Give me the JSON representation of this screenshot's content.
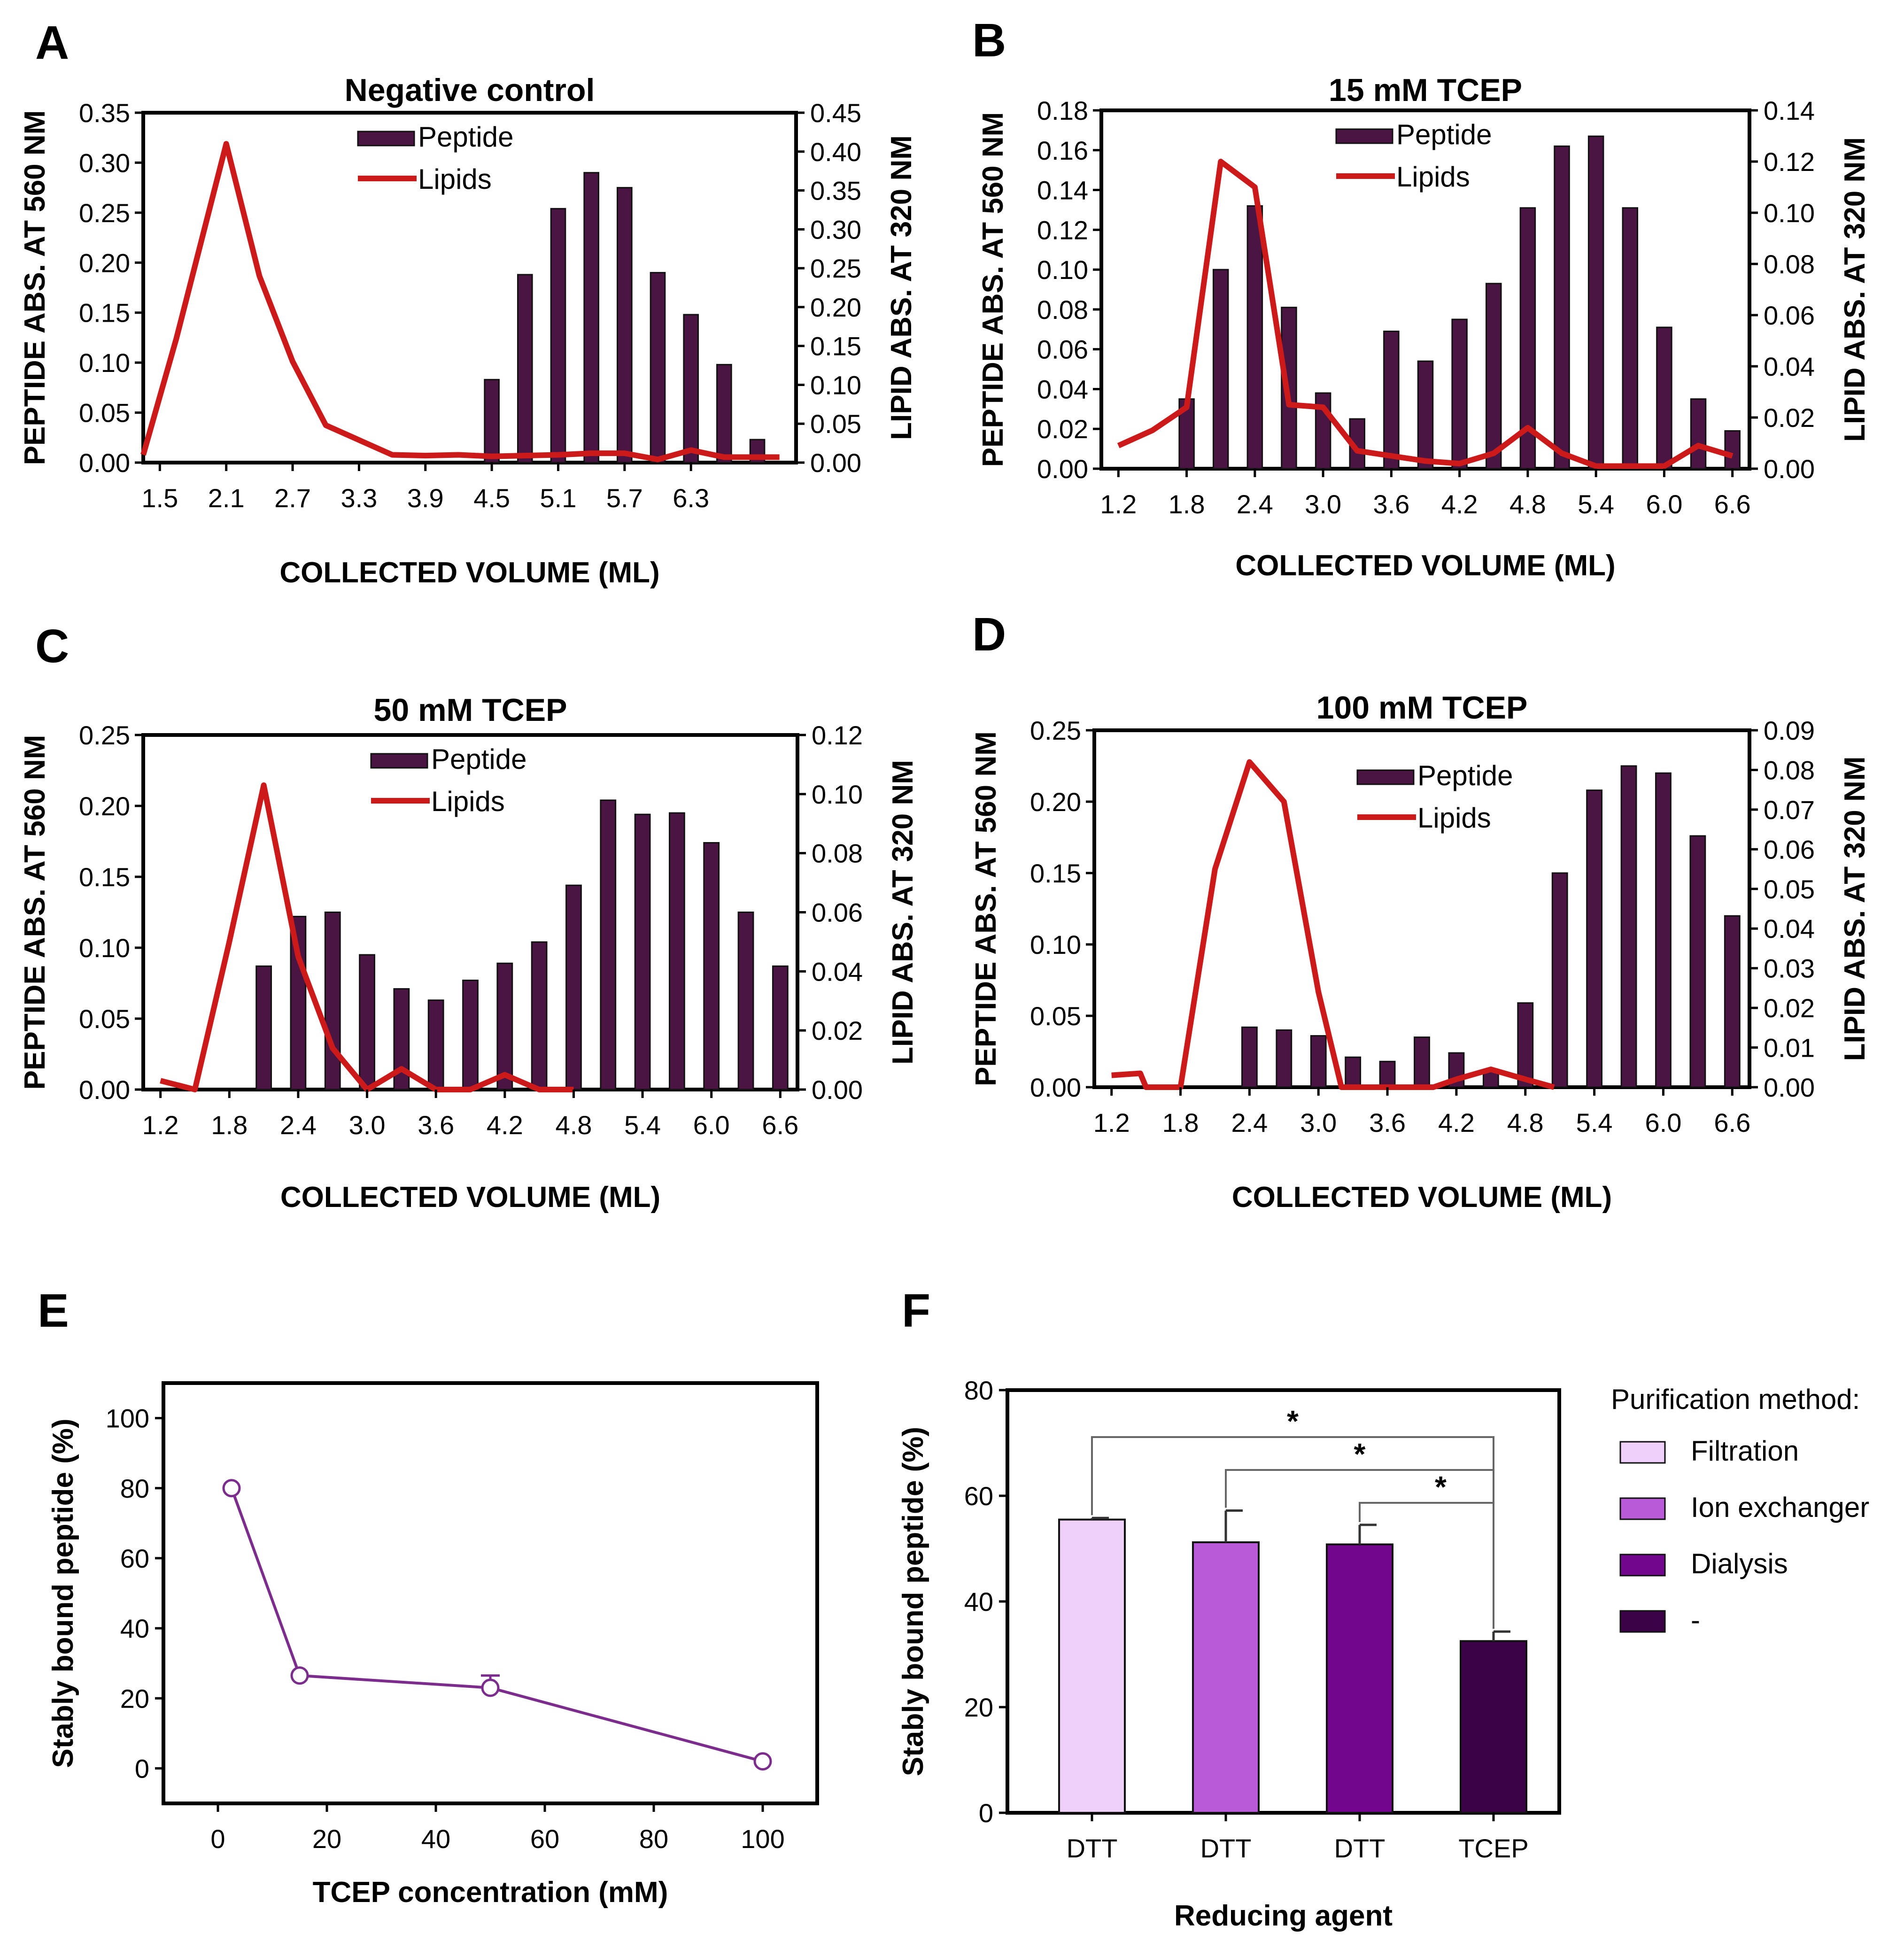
{
  "chart_data": [
    {
      "panel": "A",
      "type": "bar+line",
      "title": "Negative control",
      "xlabel": "COLLECTED VOLUME (ML)",
      "ylabel": "PEPTIDE ABS. AT 560 NM",
      "y2label": "LIPID ABS. AT 320 NM",
      "ylim": [
        0,
        0.35
      ],
      "y2lim": [
        0,
        0.45
      ],
      "xlim": [
        1.35,
        7.25
      ],
      "xticks": [
        "1.5",
        "2.1",
        "2.7",
        "3.3",
        "3.9",
        "4.5",
        "5.1",
        "5.7",
        "6.3"
      ],
      "yticks": [
        "0.00",
        "0.05",
        "0.10",
        "0.15",
        "0.20",
        "0.25",
        "0.30",
        "0.35"
      ],
      "y2ticks": [
        "0.00",
        "0.05",
        "0.10",
        "0.15",
        "0.20",
        "0.25",
        "0.30",
        "0.35",
        "0.40",
        "0.45"
      ],
      "legend": [
        "Peptide",
        "Lipids"
      ],
      "bars": {
        "name": "Peptide",
        "x": [
          4.5,
          4.8,
          5.1,
          5.4,
          5.7,
          6.0,
          6.3,
          6.6,
          6.9
        ],
        "values": [
          0.083,
          0.188,
          0.254,
          0.29,
          0.275,
          0.19,
          0.148,
          0.098,
          0.023
        ]
      },
      "line": {
        "name": "Lipids",
        "x": [
          1.35,
          1.65,
          2.1,
          2.4,
          2.7,
          3.0,
          3.6,
          3.9,
          4.2,
          4.5,
          5.1,
          5.4,
          5.7,
          6.0,
          6.3,
          6.6,
          7.1
        ],
        "values": [
          0.01,
          0.16,
          0.41,
          0.24,
          0.13,
          0.048,
          0.01,
          0.009,
          0.01,
          0.008,
          0.01,
          0.012,
          0.012,
          0.004,
          0.016,
          0.007,
          0.007
        ]
      }
    },
    {
      "panel": "B",
      "type": "bar+line",
      "title": "15 mM TCEP",
      "xlabel": "COLLECTED VOLUME (ML)",
      "ylabel": "PEPTIDE ABS. AT 560 NM",
      "y2label": "LIPID ABS. AT 320 NM",
      "ylim": [
        0,
        0.18
      ],
      "y2lim": [
        0,
        0.14
      ],
      "xlim": [
        1.05,
        6.75
      ],
      "xticks": [
        "1.2",
        "1.8",
        "2.4",
        "3.0",
        "3.6",
        "4.2",
        "4.8",
        "5.4",
        "6.0",
        "6.6"
      ],
      "yticks": [
        "0.00",
        "0.02",
        "0.04",
        "0.06",
        "0.08",
        "0.10",
        "0.12",
        "0.14",
        "0.16",
        "0.18"
      ],
      "y2ticks": [
        "0.00",
        "0.02",
        "0.04",
        "0.06",
        "0.08",
        "0.10",
        "0.12",
        "0.14"
      ],
      "legend": [
        "Peptide",
        "Lipids"
      ],
      "bars": {
        "name": "Peptide",
        "x": [
          1.8,
          2.1,
          2.4,
          2.7,
          3.0,
          3.3,
          3.6,
          3.9,
          4.2,
          4.5,
          4.8,
          5.1,
          5.4,
          5.7,
          6.0,
          6.3,
          6.6
        ],
        "values": [
          0.035,
          0.1,
          0.132,
          0.081,
          0.038,
          0.025,
          0.069,
          0.054,
          0.075,
          0.093,
          0.131,
          0.162,
          0.167,
          0.131,
          0.071,
          0.035,
          0.019
        ]
      },
      "line": {
        "name": "Lipids",
        "x": [
          1.2,
          1.5,
          1.8,
          2.1,
          2.4,
          2.7,
          3.0,
          3.3,
          3.6,
          3.9,
          4.2,
          4.5,
          4.8,
          5.1,
          5.4,
          5.7,
          6.0,
          6.3,
          6.6
        ],
        "values": [
          0.009,
          0.015,
          0.024,
          0.12,
          0.11,
          0.025,
          0.024,
          0.007,
          0.005,
          0.003,
          0.002,
          0.006,
          0.016,
          0.006,
          0.001,
          0.001,
          0.001,
          0.009,
          0.005
        ]
      }
    },
    {
      "panel": "C",
      "type": "bar+line",
      "title": "50 mM TCEP",
      "xlabel": "COLLECTED VOLUME (ML)",
      "ylabel": "PEPTIDE ABS. AT 560 NM",
      "y2label": "LIPID ABS. AT 320 NM",
      "ylim": [
        0,
        0.25
      ],
      "y2lim": [
        0,
        0.12
      ],
      "xlim": [
        1.05,
        6.75
      ],
      "xticks": [
        "1.2",
        "1.8",
        "2.4",
        "3.0",
        "3.6",
        "4.2",
        "4.8",
        "5.4",
        "6.0",
        "6.6"
      ],
      "yticks": [
        "0.00",
        "0.05",
        "0.10",
        "0.15",
        "0.20",
        "0.25"
      ],
      "y2ticks": [
        "0.00",
        "0.02",
        "0.04",
        "0.06",
        "0.08",
        "0.10",
        "0.12"
      ],
      "legend": [
        "Peptide",
        "Lipids"
      ],
      "bars": {
        "name": "Peptide",
        "x": [
          2.1,
          2.4,
          2.7,
          3.0,
          3.3,
          3.6,
          3.9,
          4.2,
          4.5,
          4.8,
          5.1,
          5.4,
          5.7,
          6.0,
          6.3,
          6.6
        ],
        "values": [
          0.087,
          0.122,
          0.125,
          0.095,
          0.071,
          0.063,
          0.077,
          0.089,
          0.104,
          0.144,
          0.204,
          0.194,
          0.195,
          0.174,
          0.125,
          0.087
        ]
      },
      "line": {
        "name": "Lipids",
        "x": [
          1.2,
          1.5,
          1.8,
          2.1,
          2.4,
          2.7,
          3.0,
          3.3,
          3.6,
          3.9,
          4.2,
          4.5,
          4.8
        ],
        "values": [
          0.003,
          0.0,
          0.05,
          0.103,
          0.045,
          0.014,
          0.0,
          0.007,
          0.0,
          0.0,
          0.005,
          0.0,
          0.0
        ]
      }
    },
    {
      "panel": "D",
      "type": "bar+line",
      "title": "100 mM TCEP",
      "xlabel": "COLLECTED VOLUME (ML)",
      "ylabel": "PEPTIDE ABS. AT 560 NM",
      "y2label": "LIPID ABS. AT 320 NM",
      "ylim": [
        0,
        0.25
      ],
      "y2lim": [
        0,
        0.09
      ],
      "xlim": [
        1.05,
        6.75
      ],
      "xticks": [
        "1.2",
        "1.8",
        "2.4",
        "3.0",
        "3.6",
        "4.2",
        "4.8",
        "5.4",
        "6.0",
        "6.6"
      ],
      "yticks": [
        "0.00",
        "0.05",
        "0.10",
        "0.15",
        "0.20",
        "0.25"
      ],
      "y2ticks": [
        "0.00",
        "0.01",
        "0.02",
        "0.03",
        "0.04",
        "0.05",
        "0.06",
        "0.07",
        "0.08",
        "0.09"
      ],
      "legend": [
        "Peptide",
        "Lipids"
      ],
      "bars": {
        "name": "Peptide",
        "x": [
          2.4,
          2.7,
          3.0,
          3.3,
          3.6,
          3.9,
          4.2,
          4.5,
          4.8,
          5.1,
          5.4,
          5.7,
          6.0,
          6.3,
          6.6
        ],
        "values": [
          0.042,
          0.04,
          0.036,
          0.021,
          0.018,
          0.035,
          0.024,
          0.012,
          0.059,
          0.15,
          0.208,
          0.225,
          0.22,
          0.176,
          0.12
        ]
      },
      "line": {
        "name": "Lipids",
        "x": [
          1.2,
          1.45,
          1.5,
          1.8,
          2.1,
          2.4,
          2.7,
          3.0,
          3.2,
          3.5,
          4.0,
          4.2,
          4.5,
          4.8,
          5.05
        ],
        "values": [
          0.003,
          0.0035,
          0.0,
          0.0,
          0.055,
          0.082,
          0.072,
          0.024,
          0.0,
          0.0,
          0.0,
          0.002,
          0.0045,
          0.002,
          0.0
        ]
      }
    },
    {
      "panel": "E",
      "type": "line",
      "xlabel": "TCEP concentration (mM)",
      "ylabel": "Stably bound peptide (%)",
      "xlim": [
        -10,
        110
      ],
      "ylim": [
        -10,
        110
      ],
      "xticks": [
        "0",
        "20",
        "40",
        "60",
        "80",
        "100"
      ],
      "yticks": [
        "0",
        "20",
        "40",
        "60",
        "80",
        "100"
      ],
      "series": [
        {
          "name": "Stably bound peptide",
          "x": [
            2.5,
            15,
            50,
            100
          ],
          "values": [
            80,
            26.5,
            23,
            2
          ],
          "errors": [
            0,
            0,
            3.5,
            0
          ]
        }
      ]
    },
    {
      "panel": "F",
      "type": "bar",
      "xlabel": "Reducing agent",
      "ylabel": "Stably bound peptide (%)",
      "ylim": [
        0,
        80
      ],
      "yticks": [
        "0",
        "20",
        "40",
        "60",
        "80"
      ],
      "categories": [
        "DTT",
        "DTT",
        "DTT",
        "TCEP"
      ],
      "values": [
        55.5,
        51.2,
        50.8,
        32.5
      ],
      "errors": [
        0.3,
        6,
        3.7,
        1.8
      ],
      "colors": [
        "#efd0fa",
        "#b95ad8",
        "#72078e",
        "#3c0248"
      ],
      "legend_title": "Purification method:",
      "legend": [
        "Filtration",
        "Ion exchanger",
        "Dialysis",
        "-"
      ],
      "significance": [
        "*",
        "*",
        "*"
      ]
    }
  ]
}
